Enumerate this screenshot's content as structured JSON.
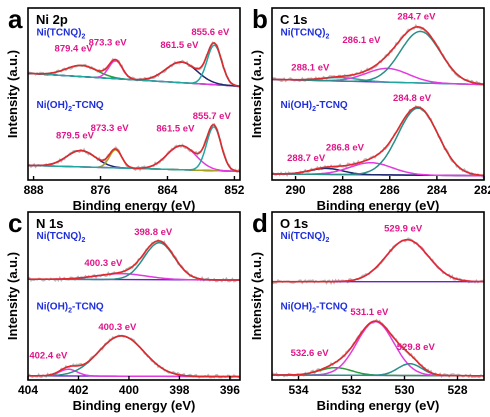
{
  "colors": {
    "raw": "#b9b9b9",
    "fit": "#e0292d",
    "background": "#6a22c9",
    "green": "#2c9c3c",
    "magenta": "#e23be0",
    "teal": "#22a7a0",
    "olive": "#a8a020",
    "navy": "#1c2a6e",
    "teal_dark": "#2a8f88",
    "label_peak": "#e0178a",
    "label_sample": "#1f2fd8"
  },
  "chart_data": [
    {
      "id": "a",
      "type": "line",
      "letter": "a",
      "core": "Ni 2p",
      "xlabel": "Binding energy (eV)",
      "ylabel": "Intensity (a.u.)",
      "xlim": [
        889,
        851
      ],
      "xticks": [
        888,
        876,
        864,
        852
      ],
      "xtick_labels": [
        "888",
        "876",
        "864",
        "852"
      ],
      "traces": [
        {
          "sample": "Ni(TCNQ)",
          "sub": "2",
          "baseline": [
            {
              "x": 889,
              "y": 0.62
            },
            {
              "x": 851,
              "y": 0.545
            }
          ],
          "components": [
            {
              "center": 879.4,
              "height": 0.065,
              "width": 2.8,
              "color": "green"
            },
            {
              "center": 873.3,
              "height": 0.105,
              "width": 1.2,
              "color": "magenta"
            },
            {
              "center": 861.5,
              "height": 0.12,
              "width": 2.8,
              "color": "navy"
            },
            {
              "center": 855.6,
              "height": 0.23,
              "width": 1.3,
              "color": "teal"
            }
          ],
          "peaks": [
            "879.4 eV",
            "873.3 eV",
            "861.5 eV",
            "855.6 eV"
          ]
        },
        {
          "sample": "Ni(OH)",
          "sub": "2",
          "suffix": "-TCNQ",
          "baseline": [
            {
              "x": 889,
              "y": 0.085
            },
            {
              "x": 851,
              "y": 0.05
            }
          ],
          "components": [
            {
              "center": 879.5,
              "height": 0.095,
              "width": 2.6,
              "color": "navy"
            },
            {
              "center": 873.3,
              "height": 0.105,
              "width": 1.1,
              "color": "olive"
            },
            {
              "center": 861.5,
              "height": 0.14,
              "width": 2.6,
              "color": "magenta"
            },
            {
              "center": 855.7,
              "height": 0.255,
              "width": 1.3,
              "color": "teal"
            }
          ],
          "peaks": [
            "879.5 eV",
            "873.3 eV",
            "861.5 eV",
            "855.7 eV"
          ]
        }
      ]
    },
    {
      "id": "b",
      "type": "line",
      "letter": "b",
      "core": "C 1s",
      "xlabel": "Binding energy (eV)",
      "ylabel": "Intensity (a.u.)",
      "xlim": [
        291,
        282
      ],
      "xticks": [
        290,
        288,
        286,
        284,
        282
      ],
      "xtick_labels": [
        "290",
        "288",
        "286",
        "284",
        "282"
      ],
      "traces": [
        {
          "sample": "Ni(TCNQ)",
          "sub": "2",
          "baseline": [
            {
              "x": 291,
              "y": 0.585
            },
            {
              "x": 282,
              "y": 0.555
            }
          ],
          "components": [
            {
              "center": 288.1,
              "height": 0.02,
              "width": 0.8,
              "color": "teal"
            },
            {
              "center": 286.1,
              "height": 0.08,
              "width": 0.9,
              "color": "magenta"
            },
            {
              "center": 284.7,
              "height": 0.3,
              "width": 0.85,
              "color": "teal_dark"
            }
          ],
          "peaks": [
            "288.1 eV",
            "286.1 eV",
            "284.7 eV"
          ]
        },
        {
          "sample": "Ni(OH)",
          "sub": "2",
          "suffix": "-TCNQ",
          "baseline": [
            {
              "x": 291,
              "y": 0.035
            },
            {
              "x": 282,
              "y": 0.025
            }
          ],
          "components": [
            {
              "center": 288.7,
              "height": 0.035,
              "width": 0.7,
              "color": "navy"
            },
            {
              "center": 286.8,
              "height": 0.07,
              "width": 0.9,
              "color": "magenta"
            },
            {
              "center": 284.8,
              "height": 0.39,
              "width": 0.85,
              "color": "teal_dark"
            }
          ],
          "peaks": [
            "288.7 eV",
            "286.8 eV",
            "284.8 eV"
          ]
        }
      ]
    },
    {
      "id": "c",
      "type": "line",
      "letter": "c",
      "core": "N 1s",
      "xlabel": "Binding energy (eV)",
      "ylabel": "Intensity (a.u.)",
      "xlim": [
        404,
        395.6
      ],
      "xticks": [
        404,
        402,
        400,
        398,
        396
      ],
      "xtick_labels": [
        "404",
        "402",
        "400",
        "398",
        "396"
      ],
      "traces": [
        {
          "sample": "Ni(TCNQ)",
          "sub": "2",
          "baseline": [
            {
              "x": 404,
              "y": 0.6
            },
            {
              "x": 395.6,
              "y": 0.595
            }
          ],
          "components": [
            {
              "center": 400.3,
              "height": 0.035,
              "width": 1.0,
              "color": "magenta"
            },
            {
              "center": 398.8,
              "height": 0.22,
              "width": 0.6,
              "color": "teal_dark"
            }
          ],
          "peaks": [
            "400.3 eV",
            "398.8 eV"
          ]
        },
        {
          "sample": "Ni(OH)",
          "sub": "2",
          "suffix": "-TCNQ",
          "baseline": [
            {
              "x": 404,
              "y": 0.025
            },
            {
              "x": 395.6,
              "y": 0.02
            }
          ],
          "components": [
            {
              "center": 402.4,
              "height": 0.04,
              "width": 0.35,
              "color": "magenta"
            },
            {
              "center": 400.3,
              "height": 0.24,
              "width": 0.9,
              "color": "teal_dark"
            }
          ],
          "peaks": [
            "402.4 eV",
            "400.3 eV"
          ]
        }
      ]
    },
    {
      "id": "d",
      "type": "line",
      "letter": "d",
      "core": "O 1s",
      "xlabel": "Binding energy (eV)",
      "ylabel": "Intensity (a.u.)",
      "xlim": [
        535,
        527
      ],
      "xticks": [
        534,
        532,
        530,
        528
      ],
      "xtick_labels": [
        "534",
        "532",
        "530",
        "528"
      ],
      "traces": [
        {
          "sample": "Ni(TCNQ)",
          "sub": "2",
          "baseline": [
            {
              "x": 535,
              "y": 0.585
            },
            {
              "x": 527,
              "y": 0.585
            }
          ],
          "components": [
            {
              "center": 529.9,
              "height": 0.25,
              "width": 0.8,
              "color": "magenta"
            }
          ],
          "peaks": [
            "529.9 eV"
          ]
        },
        {
          "sample": "Ni(OH)",
          "sub": "2",
          "suffix": "-TCNQ",
          "baseline": [
            {
              "x": 535,
              "y": 0.03
            },
            {
              "x": 527,
              "y": 0.025
            }
          ],
          "components": [
            {
              "center": 532.6,
              "height": 0.045,
              "width": 0.6,
              "color": "green"
            },
            {
              "center": 531.1,
              "height": 0.32,
              "width": 0.7,
              "color": "magenta"
            },
            {
              "center": 529.8,
              "height": 0.07,
              "width": 0.45,
              "color": "teal_dark"
            }
          ],
          "peaks": [
            "532.6 eV",
            "531.1 eV",
            "529.8 eV"
          ]
        }
      ]
    }
  ]
}
